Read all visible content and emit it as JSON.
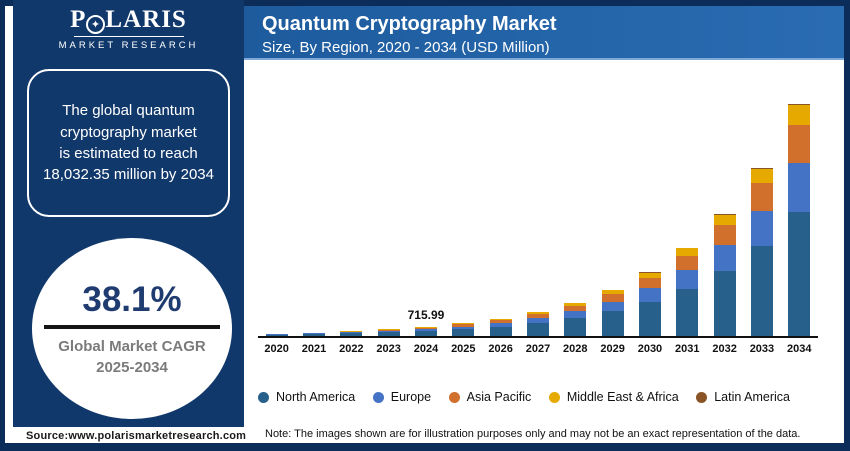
{
  "brand": {
    "name": "POLARIS",
    "wordmark_pre": "P",
    "wordmark_post": "LARIS",
    "o_icon_glyph": "✦",
    "tagline": "MARKET RESEARCH"
  },
  "header": {
    "title": "Quantum Cryptography Market",
    "subtitle": "Size, By Region, 2020 - 2034 (USD Million)"
  },
  "sidebar": {
    "highlight_text": "The global quantum\ncryptography market\nis estimated to reach\n18,032.35 million by 2034",
    "cagr": {
      "value": "38.1%",
      "label": "Global Market CAGR",
      "years": "2025-2034"
    }
  },
  "footer": {
    "source": "Source:www.polarismarketresearch.com",
    "note": "Note: The images shown are for illustration purposes only and may not be an exact representation of the data."
  },
  "colors": {
    "frame_navy": "#0c2d5a",
    "sidebar_navy": "#11386b",
    "header_blue_left": "#1d5b9d",
    "header_blue_right": "#2a6cb2",
    "cagr_value_blue": "#1f3b70",
    "cagr_gray": "#7b7b7b",
    "axis_black": "#111111"
  },
  "chart_data": {
    "type": "bar",
    "stacked": true,
    "title": "Quantum Cryptography Market Size, By Region, 2020 - 2034 (USD Million)",
    "unit": "USD Million",
    "grid": false,
    "legend_position": "bottom",
    "ylim": [
      0,
      18300
    ],
    "categories": [
      2020,
      2021,
      2022,
      2023,
      2024,
      2025,
      2026,
      2027,
      2028,
      2029,
      2030,
      2031,
      2032,
      2033,
      2034
    ],
    "series": [
      {
        "name": "North America",
        "color": "#28608c",
        "values": [
          105.5,
          145.7,
          201.2,
          277.8,
          383.8,
          530.0,
          731.9,
          1010.8,
          1395.9,
          1927.7,
          2662.1,
          3676.4,
          5077.2,
          7011.5,
          9665.3
        ]
      },
      {
        "name": "Europe",
        "color": "#4472c4",
        "values": [
          41.3,
          57.1,
          78.8,
          108.8,
          150.4,
          207.6,
          286.8,
          396.0,
          546.9,
          755.3,
          1043.0,
          1440.4,
          1989.2,
          2747.1,
          3786.8
        ]
      },
      {
        "name": "Asia Pacific",
        "color": "#d16f2d",
        "values": [
          32.5,
          44.8,
          61.9,
          85.5,
          118.1,
          163.2,
          225.3,
          311.2,
          429.7,
          593.4,
          819.5,
          1131.7,
          1562.9,
          2158.4,
          2975.3
        ]
      },
      {
        "name": "Middle East & Africa",
        "color": "#e5a900",
        "values": [
          16.7,
          23.1,
          31.9,
          44.1,
          60.9,
          84.0,
          116.1,
          160.3,
          221.4,
          305.7,
          422.2,
          583.0,
          805.1,
          1111.9,
          1532.7
        ]
      },
      {
        "name": "Latin America",
        "color": "#8a5426",
        "values": [
          0.8,
          1.1,
          1.5,
          2.1,
          2.9,
          4.0,
          5.5,
          7.5,
          10.4,
          14.4,
          19.9,
          27.4,
          37.9,
          52.3,
          72.1
        ]
      }
    ],
    "totals": [
      196.8,
      271.8,
      375.3,
      518.3,
      715.99,
      988.8,
      1365.5,
      1885.8,
      2604.3,
      3596.5,
      4966.7,
      6859.0,
      9472.3,
      13081.2,
      18032.35
    ],
    "annotations": [
      {
        "category": 2024,
        "text": "715.99"
      }
    ],
    "estimated_value_2034": "18,032.35",
    "cagr_percent": 38.1
  }
}
